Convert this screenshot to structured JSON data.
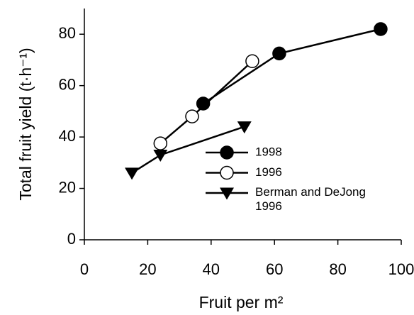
{
  "chart_data": {
    "type": "line",
    "x_label": "Fruit per m²",
    "y_label": "Total fruit yield (t·h⁻¹)",
    "xlim": [
      0,
      100
    ],
    "xticks": [
      0,
      20,
      40,
      60,
      80,
      100
    ],
    "ylim": [
      0,
      90
    ],
    "yticks": [
      0,
      20,
      40,
      60,
      80
    ],
    "series": [
      {
        "name": "1998",
        "color": "#000000",
        "marker": "filled-circle",
        "x": [
          37.5,
          61.5,
          93.5
        ],
        "values": [
          53,
          72.5,
          82
        ]
      },
      {
        "name": "1996",
        "color": "#000000",
        "marker": "open-circle",
        "x": [
          24,
          34,
          53
        ],
        "values": [
          37.5,
          48,
          69.5
        ]
      },
      {
        "name": "Berman and DeJong 1996",
        "color": "#000000",
        "marker": "down-triangle",
        "x": [
          15,
          24,
          50.5
        ],
        "values": [
          26,
          33,
          44
        ]
      }
    ]
  }
}
